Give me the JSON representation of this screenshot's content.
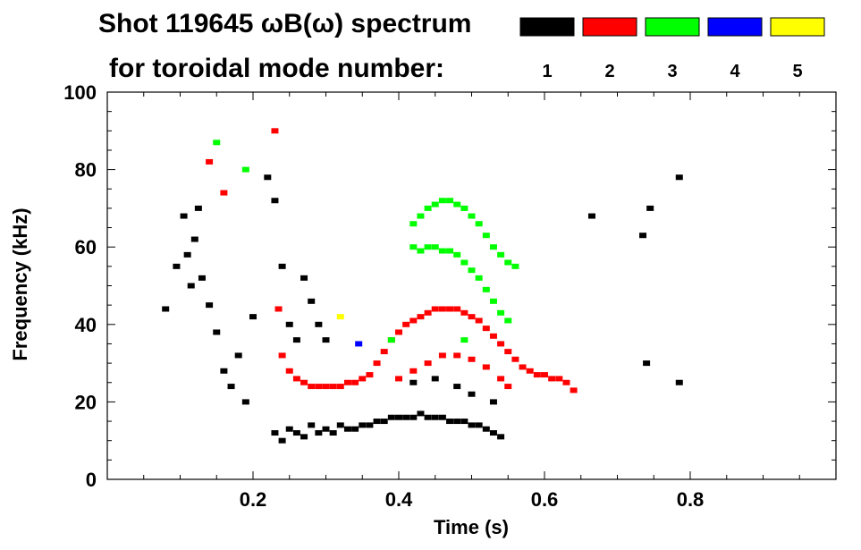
{
  "chart_data": {
    "type": "scatter",
    "title_line1": "Shot 119645 ωB(ω) spectrum",
    "title_line2": "for toroidal mode number:",
    "xlabel": "Time (s)",
    "ylabel": "Frequency (kHz)",
    "xlim": [
      0,
      1.0
    ],
    "ylim": [
      0,
      100
    ],
    "x_ticks": [
      0.2,
      0.4,
      0.6,
      0.8
    ],
    "x_tick_labels": [
      "0.2",
      "0.4",
      "0.6",
      "0.8"
    ],
    "y_ticks": [
      0,
      20,
      40,
      60,
      80,
      100
    ],
    "y_tick_labels": [
      "0",
      "20",
      "40",
      "60",
      "80",
      "100"
    ],
    "legend_position": "top-right",
    "series": [
      {
        "name": "1",
        "color": "#000000",
        "points": [
          [
            0.08,
            44
          ],
          [
            0.095,
            55
          ],
          [
            0.105,
            68
          ],
          [
            0.11,
            58
          ],
          [
            0.115,
            50
          ],
          [
            0.12,
            62
          ],
          [
            0.125,
            70
          ],
          [
            0.13,
            52
          ],
          [
            0.14,
            45
          ],
          [
            0.15,
            38
          ],
          [
            0.16,
            28
          ],
          [
            0.17,
            24
          ],
          [
            0.18,
            32
          ],
          [
            0.19,
            20
          ],
          [
            0.2,
            42
          ],
          [
            0.22,
            78
          ],
          [
            0.23,
            72
          ],
          [
            0.24,
            55
          ],
          [
            0.25,
            40
          ],
          [
            0.26,
            36
          ],
          [
            0.27,
            52
          ],
          [
            0.28,
            46
          ],
          [
            0.29,
            40
          ],
          [
            0.3,
            36
          ],
          [
            0.23,
            12
          ],
          [
            0.24,
            10
          ],
          [
            0.25,
            13
          ],
          [
            0.26,
            12
          ],
          [
            0.27,
            11
          ],
          [
            0.28,
            14
          ],
          [
            0.29,
            12
          ],
          [
            0.3,
            13
          ],
          [
            0.31,
            12
          ],
          [
            0.32,
            14
          ],
          [
            0.33,
            13
          ],
          [
            0.34,
            13
          ],
          [
            0.35,
            14
          ],
          [
            0.36,
            14
          ],
          [
            0.37,
            15
          ],
          [
            0.38,
            15
          ],
          [
            0.39,
            16
          ],
          [
            0.4,
            16
          ],
          [
            0.41,
            16
          ],
          [
            0.42,
            16
          ],
          [
            0.43,
            17
          ],
          [
            0.44,
            16
          ],
          [
            0.45,
            16
          ],
          [
            0.46,
            16
          ],
          [
            0.47,
            15
          ],
          [
            0.48,
            15
          ],
          [
            0.49,
            15
          ],
          [
            0.5,
            14
          ],
          [
            0.51,
            14
          ],
          [
            0.52,
            13
          ],
          [
            0.53,
            12
          ],
          [
            0.54,
            11
          ],
          [
            0.42,
            25
          ],
          [
            0.45,
            26
          ],
          [
            0.48,
            24
          ],
          [
            0.5,
            22
          ],
          [
            0.53,
            20
          ],
          [
            0.665,
            68
          ],
          [
            0.735,
            63
          ],
          [
            0.745,
            70
          ],
          [
            0.785,
            78
          ],
          [
            0.74,
            30
          ],
          [
            0.785,
            25
          ]
        ]
      },
      {
        "name": "2",
        "color": "#ff0000",
        "points": [
          [
            0.14,
            82
          ],
          [
            0.16,
            74
          ],
          [
            0.23,
            90
          ],
          [
            0.235,
            44
          ],
          [
            0.24,
            32
          ],
          [
            0.25,
            28
          ],
          [
            0.26,
            26
          ],
          [
            0.27,
            25
          ],
          [
            0.28,
            24
          ],
          [
            0.29,
            24
          ],
          [
            0.3,
            24
          ],
          [
            0.31,
            24
          ],
          [
            0.32,
            24
          ],
          [
            0.33,
            25
          ],
          [
            0.34,
            25
          ],
          [
            0.35,
            26
          ],
          [
            0.36,
            27
          ],
          [
            0.37,
            30
          ],
          [
            0.38,
            33
          ],
          [
            0.39,
            36
          ],
          [
            0.4,
            38
          ],
          [
            0.41,
            40
          ],
          [
            0.42,
            41
          ],
          [
            0.43,
            42
          ],
          [
            0.44,
            43
          ],
          [
            0.45,
            44
          ],
          [
            0.46,
            44
          ],
          [
            0.47,
            44
          ],
          [
            0.48,
            44
          ],
          [
            0.49,
            43
          ],
          [
            0.5,
            42
          ],
          [
            0.51,
            41
          ],
          [
            0.52,
            39
          ],
          [
            0.53,
            37
          ],
          [
            0.54,
            35
          ],
          [
            0.55,
            33
          ],
          [
            0.56,
            31
          ],
          [
            0.57,
            29
          ],
          [
            0.58,
            28
          ],
          [
            0.59,
            27
          ],
          [
            0.6,
            27
          ],
          [
            0.61,
            26
          ],
          [
            0.62,
            26
          ],
          [
            0.63,
            25
          ],
          [
            0.64,
            23
          ],
          [
            0.4,
            26
          ],
          [
            0.42,
            28
          ],
          [
            0.44,
            30
          ],
          [
            0.46,
            32
          ],
          [
            0.48,
            32
          ],
          [
            0.5,
            31
          ],
          [
            0.52,
            29
          ],
          [
            0.54,
            26
          ],
          [
            0.55,
            24
          ]
        ]
      },
      {
        "name": "3",
        "color": "#00ff00",
        "points": [
          [
            0.15,
            87
          ],
          [
            0.19,
            80
          ],
          [
            0.42,
            60
          ],
          [
            0.43,
            59
          ],
          [
            0.44,
            60
          ],
          [
            0.45,
            60
          ],
          [
            0.46,
            59
          ],
          [
            0.47,
            59
          ],
          [
            0.48,
            58
          ],
          [
            0.49,
            56
          ],
          [
            0.5,
            54
          ],
          [
            0.51,
            52
          ],
          [
            0.52,
            49
          ],
          [
            0.53,
            46
          ],
          [
            0.54,
            43
          ],
          [
            0.55,
            41
          ],
          [
            0.42,
            66
          ],
          [
            0.43,
            68
          ],
          [
            0.44,
            70
          ],
          [
            0.45,
            71
          ],
          [
            0.46,
            72
          ],
          [
            0.47,
            72
          ],
          [
            0.48,
            71
          ],
          [
            0.49,
            70
          ],
          [
            0.5,
            68
          ],
          [
            0.51,
            66
          ],
          [
            0.52,
            63
          ],
          [
            0.53,
            60
          ],
          [
            0.54,
            58
          ],
          [
            0.55,
            56
          ],
          [
            0.56,
            55
          ],
          [
            0.39,
            36
          ],
          [
            0.49,
            36
          ]
        ]
      },
      {
        "name": "4",
        "color": "#0000ff",
        "points": [
          [
            0.345,
            35
          ]
        ]
      },
      {
        "name": "5",
        "color": "#ffff00",
        "points": [
          [
            0.32,
            42
          ]
        ]
      }
    ]
  }
}
